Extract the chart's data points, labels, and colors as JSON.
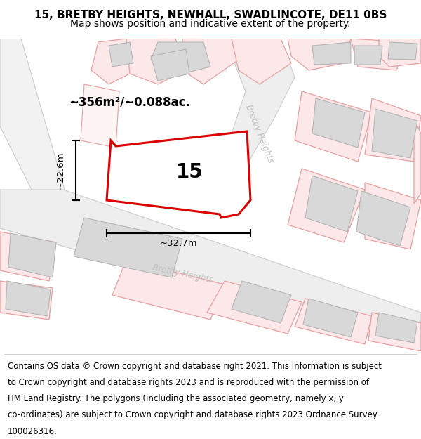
{
  "title_line1": "15, BRETBY HEIGHTS, NEWHALL, SWADLINCOTE, DE11 0BS",
  "title_line2": "Map shows position and indicative extent of the property.",
  "area_label": "~356m²/~0.088ac.",
  "width_label": "~32.7m",
  "height_label": "~22.6m",
  "property_number": "15",
  "map_bg": "#ffffff",
  "red_line": "#dd0000",
  "red_fill": "#ffffff",
  "pink_edge": "#e8a0a0",
  "pink_fill": "#fce8e8",
  "road_fill": "#f0f0f0",
  "road_edge": "#d0d0d0",
  "gray_bldg_fill": "#d8d8d8",
  "gray_bldg_edge": "#b0b0b0",
  "road_label": "Bretby Heights",
  "road_label_color": "#c0c0c0",
  "title_fontsize": 11,
  "subtitle_fontsize": 10,
  "footer_fontsize": 8.5,
  "footer_lines": [
    "Contains OS data © Crown copyright and database right 2021. This information is subject",
    "to Crown copyright and database rights 2023 and is reproduced with the permission of",
    "HM Land Registry. The polygons (including the associated geometry, namely x, y",
    "co-ordinates) are subject to Crown copyright and database rights 2023 Ordnance Survey",
    "100026316."
  ]
}
